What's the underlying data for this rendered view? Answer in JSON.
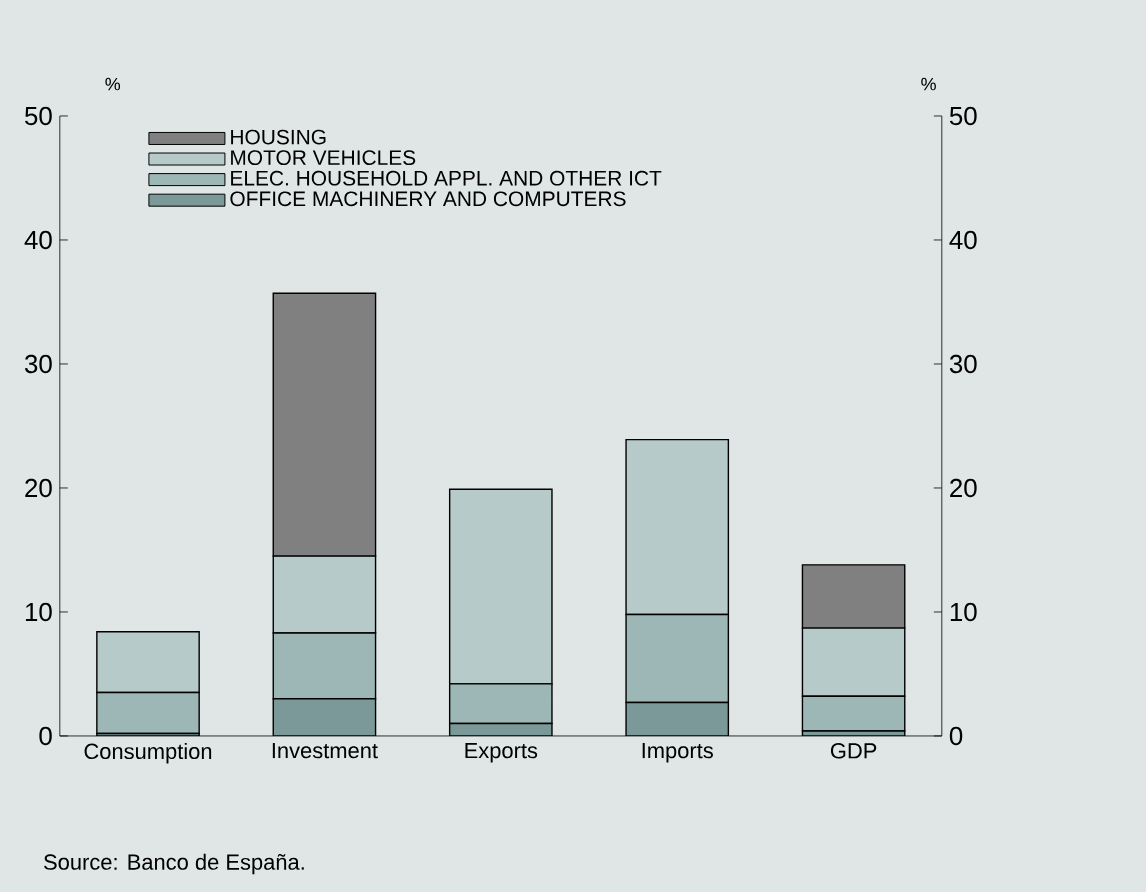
{
  "chart_data": {
    "type": "bar",
    "stacked": true,
    "categories": [
      "Consumption",
      "Investment",
      "Exports",
      "Imports",
      "GDP"
    ],
    "series": [
      {
        "name": "OFFICE MACHINERY AND COMPUTERS",
        "color": "#7c9999",
        "values": [
          0.2,
          3.0,
          1.0,
          2.7,
          0.4
        ]
      },
      {
        "name": "ELEC. HOUSEHOLD APPL. AND OTHER ICT",
        "color": "#9db6b6",
        "values": [
          3.3,
          5.3,
          3.2,
          7.1,
          2.8
        ]
      },
      {
        "name": "MOTOR VEHICLES",
        "color": "#b6caca",
        "values": [
          4.9,
          6.2,
          15.7,
          14.1,
          5.5
        ]
      },
      {
        "name": "HOUSING",
        "color": "#808080",
        "values": [
          0,
          21.2,
          0,
          0,
          5.1
        ]
      }
    ],
    "ylabel": "%",
    "y2label": "%",
    "ylim": [
      0,
      50
    ],
    "yticks": [
      0,
      10,
      20,
      30,
      40,
      50
    ],
    "y2lim": [
      0,
      50
    ],
    "y2ticks": [
      0,
      10,
      20,
      30,
      40,
      50
    ],
    "legend": "top left",
    "annotations": [
      "Source: Banco de España."
    ]
  }
}
